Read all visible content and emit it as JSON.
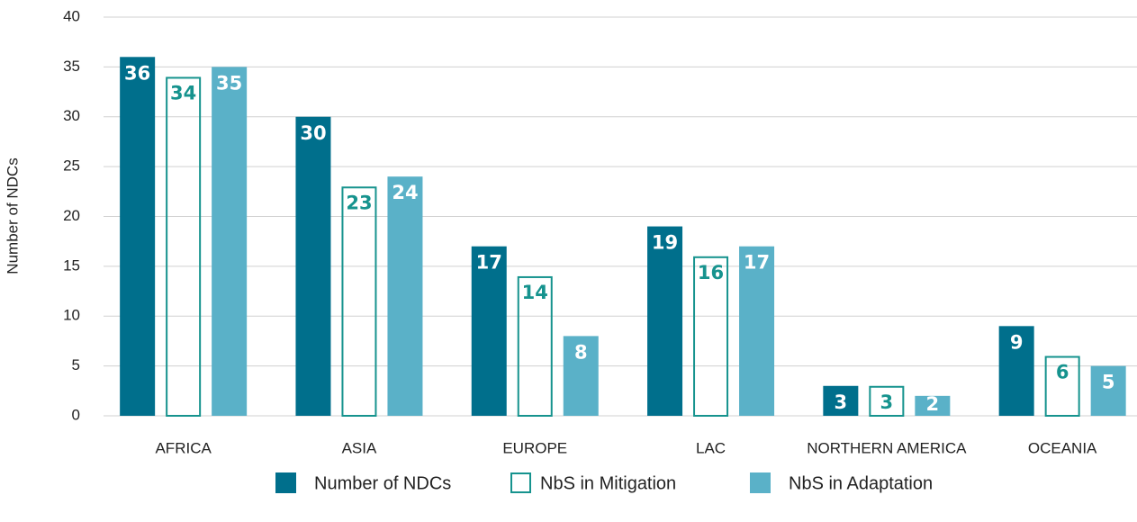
{
  "chart_data": {
    "type": "bar",
    "y_label": "Number of NDCs",
    "categories": [
      "AFRICA",
      "ASIA",
      "EUROPE",
      "LAC",
      "NORTHERN AMERICA",
      "OCEANIA"
    ],
    "series": [
      {
        "name": "Number of NDCs",
        "color": "#006f8c",
        "fill": true,
        "values": [
          36,
          30,
          17,
          19,
          3,
          9
        ]
      },
      {
        "name": "NbS in Mitigation",
        "color": "#16938e",
        "fill": false,
        "values": [
          34,
          23,
          14,
          16,
          3,
          6
        ]
      },
      {
        "name": "NbS in Adaptation",
        "color": "#5ab1c8",
        "fill": true,
        "values": [
          35,
          24,
          8,
          17,
          2,
          5
        ]
      }
    ],
    "ylim": [
      0,
      40
    ],
    "yticks": [
      0,
      5,
      10,
      15,
      20,
      25,
      30,
      35,
      40
    ],
    "grid": true,
    "legend": "bottom"
  }
}
